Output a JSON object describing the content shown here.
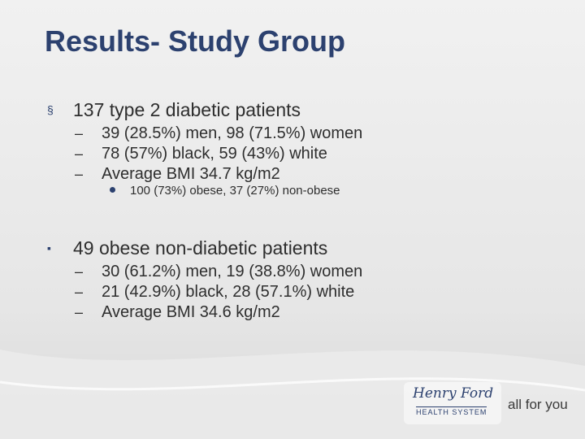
{
  "title": "Results- Study Group",
  "sections": [
    {
      "text": "137 type 2 diabetic patients",
      "items": [
        {
          "text": "39 (28.5%) men, 98 (71.5%) women"
        },
        {
          "text": "78 (57%) black, 59 (43%) white"
        },
        {
          "text": "Average BMI 34.7 kg/m2",
          "items": [
            "100 (73%) obese, 37 (27%) non-obese"
          ]
        }
      ]
    },
    {
      "text": "49 obese non-diabetic patients",
      "items": [
        {
          "text": "30 (61.2%) men, 19 (38.8%) women"
        },
        {
          "text": "21 (42.9%) black, 28 (57.1%) white"
        },
        {
          "text": "Average BMI 34.6 kg/m2"
        }
      ]
    }
  ],
  "logo": {
    "name": "Henry Ford",
    "subtitle": "HEALTH SYSTEM",
    "tagline": "all for you"
  }
}
